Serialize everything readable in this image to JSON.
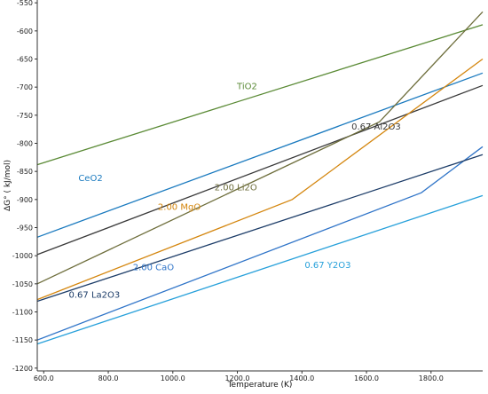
{
  "chart_data": {
    "type": "line",
    "xlabel": "Temperature (K)",
    "ylabel": "ΔG° ( kJ/mol)",
    "xlim": [
      580,
      1960
    ],
    "ylim": [
      -1205,
      -545
    ],
    "xticks": [
      600,
      800,
      1000,
      1200,
      1400,
      1600,
      1800
    ],
    "xtick_labels": [
      "600.0",
      "800.0",
      "1000.0",
      "1200.0",
      "1400.0",
      "1600.0",
      "1800.0"
    ],
    "yticks": [
      -550,
      -600,
      -650,
      -700,
      -750,
      -800,
      -850,
      -900,
      -950,
      -1000,
      -1050,
      -1100,
      -1150,
      -1200
    ],
    "ytick_labels": [
      "-550",
      "-600",
      "-650",
      "-700",
      "-750",
      "-800",
      "-850",
      "-900",
      "-950",
      "-1000",
      "-1050",
      "-1100",
      "-1150",
      "-1200"
    ],
    "grid": false,
    "series": [
      {
        "name": "TiO2",
        "color": "#5a8a35",
        "x": [
          580,
          1960
        ],
        "y": [
          -838,
          -589
        ],
        "label_at": [
          1230,
          -699
        ]
      },
      {
        "name": "CeO2",
        "color": "#1a7abf",
        "x": [
          580,
          1960
        ],
        "y": [
          -967,
          -675
        ],
        "label_at": [
          745,
          -862
        ]
      },
      {
        "name": "0.67 Al2O3",
        "color": "#3a3a3a",
        "x": [
          580,
          1960
        ],
        "y": [
          -998,
          -697
        ],
        "label_at": [
          1630,
          -771
        ]
      },
      {
        "name": "2.00 Li2O",
        "color": "#6e6e3c",
        "x": [
          580,
          1640,
          1960
        ],
        "y": [
          -1050,
          -762,
          -566
        ],
        "label_at": [
          1195,
          -879
        ]
      },
      {
        "name": "2.00 MgO",
        "color": "#d4860e",
        "x": [
          580,
          1370,
          1960
        ],
        "y": [
          -1078,
          -900,
          -650
        ],
        "label_at": [
          1020,
          -914
        ]
      },
      {
        "name": "2.00 CaO",
        "color": "#2f74c8",
        "x": [
          580,
          1770,
          1960
        ],
        "y": [
          -1150,
          -888,
          -806
        ],
        "label_at": [
          940,
          -1021
        ]
      },
      {
        "name": "0.67 La2O3",
        "color": "#1c3c68",
        "x": [
          580,
          1960
        ],
        "y": [
          -1081,
          -820
        ],
        "label_at": [
          757,
          -1070
        ]
      },
      {
        "name": "0.67 Y2O3",
        "color": "#26a0da",
        "x": [
          580,
          1960
        ],
        "y": [
          -1157,
          -893
        ],
        "label_at": [
          1480,
          -1017
        ]
      }
    ]
  }
}
